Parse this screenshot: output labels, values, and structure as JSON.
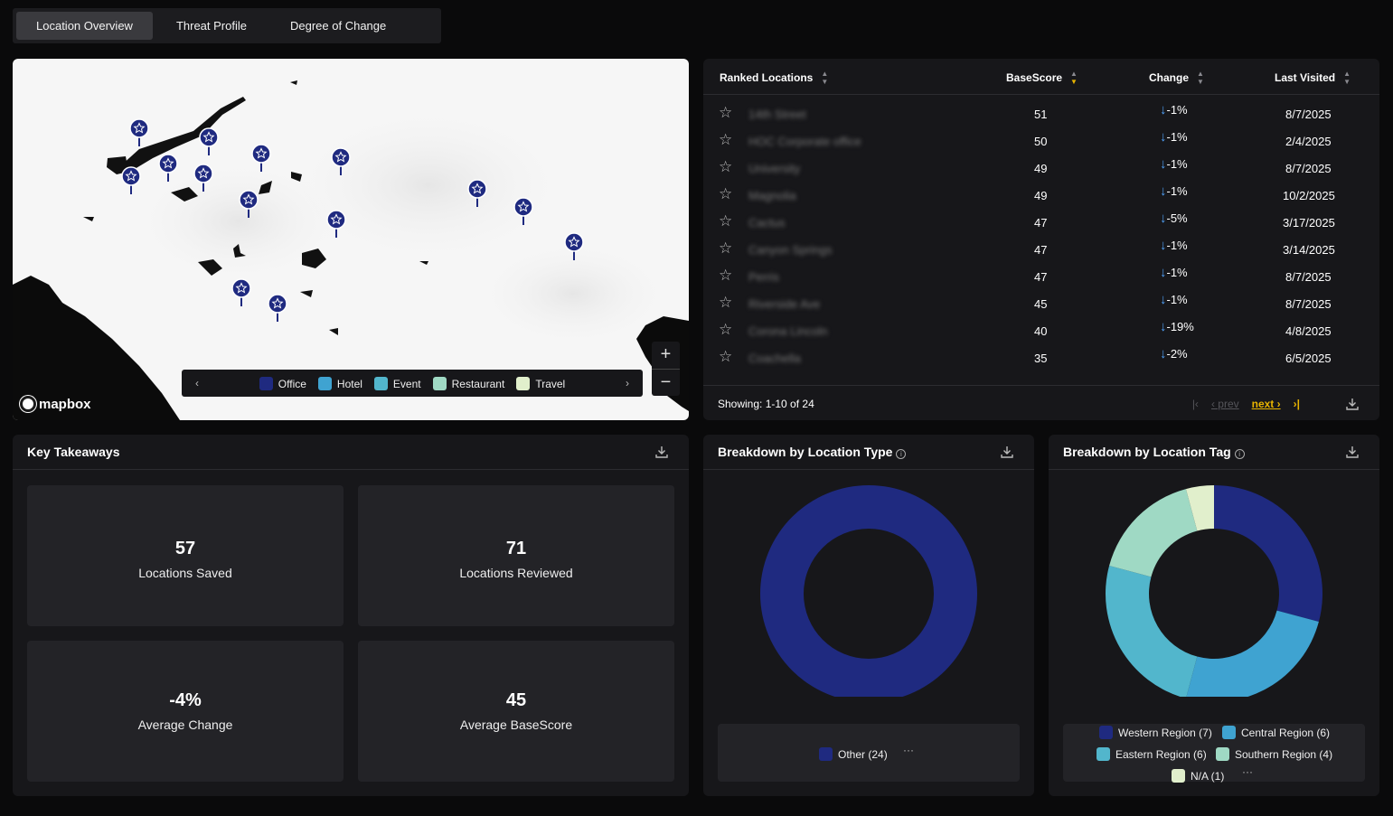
{
  "tabs": [
    {
      "label": "Location Overview",
      "active": true
    },
    {
      "label": "Threat Profile",
      "active": false
    },
    {
      "label": "Degree of Change",
      "active": false
    }
  ],
  "map": {
    "attribution": "mapbox",
    "zoom_in": "+",
    "zoom_out": "−",
    "legend": [
      {
        "label": "Office",
        "color": "#1f2a80"
      },
      {
        "label": "Hotel",
        "color": "#3fa3d1"
      },
      {
        "label": "Event",
        "color": "#52b6cc"
      },
      {
        "label": "Restaurant",
        "color": "#9fd9c4"
      },
      {
        "label": "Travel",
        "color": "#e1efcc"
      }
    ],
    "legend_prev": "‹",
    "legend_next": "›"
  },
  "ranked": {
    "headers": {
      "name": "Ranked Locations",
      "score": "BaseScore",
      "change": "Change",
      "visited": "Last Visited"
    },
    "rows": [
      {
        "name": "14th Street",
        "score": "51",
        "change": "-1%",
        "visited": "8/7/2025"
      },
      {
        "name": "HOC Corporate office",
        "score": "50",
        "change": "-1%",
        "visited": "2/4/2025"
      },
      {
        "name": "University",
        "score": "49",
        "change": "-1%",
        "visited": "8/7/2025"
      },
      {
        "name": "Magnolia",
        "score": "49",
        "change": "-1%",
        "visited": "10/2/2025"
      },
      {
        "name": "Cactus",
        "score": "47",
        "change": "-5%",
        "visited": "3/17/2025"
      },
      {
        "name": "Canyon Springs",
        "score": "47",
        "change": "-1%",
        "visited": "3/14/2025"
      },
      {
        "name": "Perris",
        "score": "47",
        "change": "-1%",
        "visited": "8/7/2025"
      },
      {
        "name": "Riverside Ave",
        "score": "45",
        "change": "-1%",
        "visited": "8/7/2025"
      },
      {
        "name": "Corona Lincoln",
        "score": "40",
        "change": "-19%",
        "visited": "4/8/2025"
      },
      {
        "name": "Coachella",
        "score": "35",
        "change": "-2%",
        "visited": "6/5/2025"
      }
    ],
    "showing": "Showing: 1-10 of 24",
    "pager": {
      "first": "|‹",
      "prev": "‹ prev",
      "next": "next ›",
      "last": "›|"
    }
  },
  "key_takeaways": {
    "title": "Key Takeaways",
    "cards": [
      {
        "value": "57",
        "label": "Locations Saved"
      },
      {
        "value": "71",
        "label": "Locations Reviewed"
      },
      {
        "value": "-4%",
        "label": "Average Change"
      },
      {
        "value": "45",
        "label": "Average BaseScore"
      }
    ]
  },
  "chart_data": [
    {
      "type": "pie",
      "title": "Breakdown by Location Type",
      "categories": [
        "Other"
      ],
      "values": [
        24
      ],
      "colors": [
        "#1f2a80"
      ],
      "legend": [
        "Other (24)"
      ],
      "more": "···"
    },
    {
      "type": "pie",
      "title": "Breakdown by Location Tag",
      "categories": [
        "Western Region",
        "Central Region",
        "Eastern Region",
        "Southern Region",
        "N/A"
      ],
      "values": [
        7,
        6,
        6,
        4,
        1
      ],
      "colors": [
        "#1f2a80",
        "#3fa3d1",
        "#52b6cc",
        "#9fd9c4",
        "#e1efcc"
      ],
      "legend": [
        "Western Region (7)",
        "Central Region (6)",
        "Eastern Region (6)",
        "Southern Region (4)",
        "N/A (1)"
      ],
      "more": "···"
    }
  ]
}
